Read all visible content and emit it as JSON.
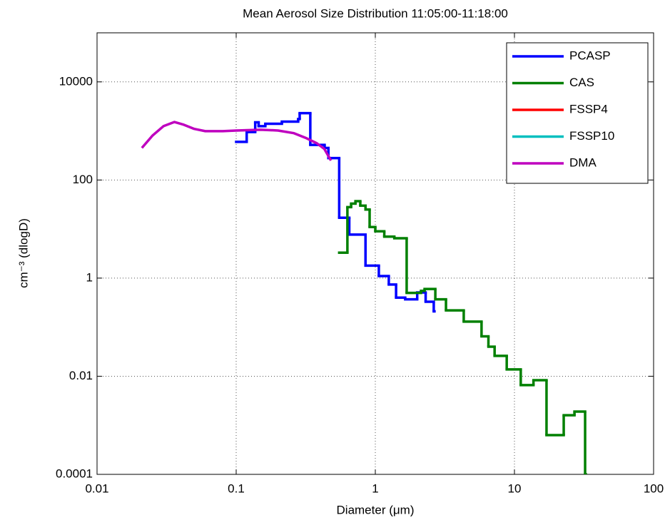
{
  "chart_data": {
    "type": "line",
    "title": "Mean Aerosol Size Distribution 11:05:00-11:18:00",
    "xlabel": "Diameter (μm)",
    "ylabel": "cm⁻³ (dlogD)",
    "xscale": "log",
    "yscale": "log",
    "grid": true,
    "legend": "upper right",
    "xlim": [
      0.01,
      100
    ],
    "xticks": [
      0.01,
      0.1,
      1,
      10,
      100
    ],
    "ylim": [
      0.0001,
      100000
    ],
    "yticks": [
      0.0001,
      0.01,
      1,
      100,
      10000
    ],
    "series": [
      {
        "name": "PCASP",
        "color": "#0000ff",
        "step": true,
        "x": [
          0.1,
          0.119,
          0.137,
          0.145,
          0.162,
          0.213,
          0.279,
          0.286,
          0.341,
          0.432,
          0.46,
          0.55,
          0.65,
          0.85,
          1.06,
          1.25,
          1.41,
          1.64,
          2.0,
          2.3,
          2.63
        ],
        "values": [
          600,
          950,
          1500,
          1250,
          1400,
          1550,
          1750,
          2300,
          520,
          450,
          280,
          17,
          7.7,
          1.8,
          1.1,
          0.74,
          0.4,
          0.37,
          0.51,
          0.33,
          0.21
        ]
      },
      {
        "name": "CAS",
        "color": "#008000",
        "step": true,
        "x": [
          0.55,
          0.63,
          0.67,
          0.72,
          0.78,
          0.85,
          0.91,
          1.0,
          1.16,
          1.37,
          1.68,
          2.13,
          2.26,
          2.7,
          3.22,
          4.32,
          5.8,
          6.5,
          7.2,
          8.8,
          11.1,
          13.7,
          17.0,
          22.6,
          27,
          32.2
        ],
        "values": [
          3.3,
          28,
          33,
          37,
          30,
          25,
          11,
          9,
          7,
          6.5,
          0.5,
          0.55,
          0.6,
          0.37,
          0.22,
          0.13,
          0.065,
          0.04,
          0.026,
          0.0138,
          0.0066,
          0.0083,
          0.00063,
          0.0016,
          0.0019,
          0.0001
        ]
      },
      {
        "name": "FSSP4",
        "color": "#ff0000",
        "x": [],
        "values": []
      },
      {
        "name": "FSSP10",
        "color": "#00bfbf",
        "x": [],
        "values": []
      },
      {
        "name": "DMA",
        "color": "#bf00bf",
        "x": [
          0.021,
          0.025,
          0.03,
          0.036,
          0.042,
          0.05,
          0.06,
          0.08,
          0.1,
          0.15,
          0.2,
          0.26,
          0.32,
          0.38,
          0.43,
          0.48
        ],
        "values": [
          450,
          800,
          1250,
          1520,
          1340,
          1100,
          990,
          990,
          1020,
          1060,
          1020,
          900,
          710,
          560,
          430,
          250
        ]
      }
    ]
  }
}
